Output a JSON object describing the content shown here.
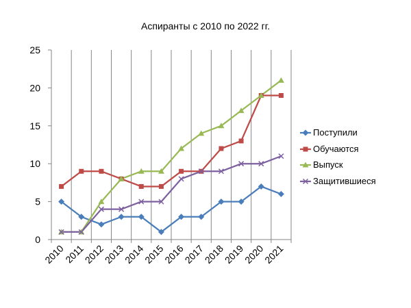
{
  "chart_data": {
    "type": "line",
    "title": "Аспиранты с 2010 по 2022 гг.",
    "xlabel": "",
    "ylabel": "",
    "categories": [
      "2010",
      "2011",
      "2012",
      "2013",
      "2014",
      "2015",
      "2016",
      "2017",
      "2018",
      "2019",
      "2020",
      "2021"
    ],
    "ylim": [
      0,
      25
    ],
    "yticks": [
      "0",
      "5",
      "10",
      "15",
      "20",
      "25"
    ],
    "grid": "vertical",
    "legend": "right",
    "series": [
      {
        "name": "Поступили",
        "color": "#4a7ebb",
        "marker": "diamond",
        "values": [
          5,
          3,
          2,
          3,
          3,
          1,
          3,
          3,
          5,
          5,
          7,
          6
        ]
      },
      {
        "name": "Обучаются",
        "color": "#be4b48",
        "marker": "square",
        "values": [
          7,
          9,
          9,
          8,
          7,
          7,
          9,
          9,
          12,
          13,
          19,
          19
        ]
      },
      {
        "name": "Выпуск",
        "color": "#98b954",
        "marker": "triangle",
        "values": [
          1,
          1,
          5,
          8,
          9,
          9,
          12,
          14,
          15,
          17,
          19,
          21
        ]
      },
      {
        "name": "Защитившиеся",
        "color": "#7d60a0",
        "marker": "x",
        "values": [
          1,
          1,
          4,
          4,
          5,
          5,
          8,
          9,
          9,
          10,
          10,
          11
        ]
      }
    ]
  }
}
